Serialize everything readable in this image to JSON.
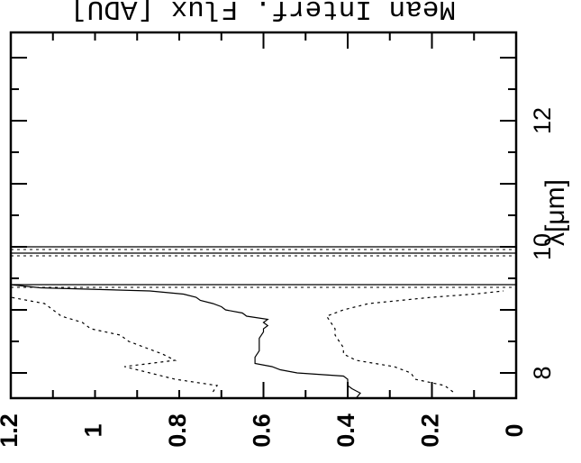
{
  "chart_data": {
    "type": "line",
    "title": "Mean Interf. Flux [ADU]",
    "xlabel": "λ[μm]",
    "ylabel": "",
    "xlim": [
      7.6,
      13.4
    ],
    "ylim": [
      0,
      1.2
    ],
    "x_ticks": [
      8,
      10,
      12
    ],
    "y_ticks": [
      0,
      0.2,
      0.4,
      0.6,
      0.8,
      1,
      1.2
    ],
    "y_tick_labels": [
      "0",
      "0.2",
      "0.4",
      "0.6",
      "0.8",
      "1",
      "1.2"
    ],
    "grid": false,
    "legend": "none",
    "vertical_lines": [
      9.4,
      9.9,
      10.0
    ],
    "series": [
      {
        "style": "solid",
        "x": [
          7.6,
          7.68,
          7.75,
          7.8,
          7.85,
          7.9,
          7.95,
          8.0,
          8.05,
          8.1,
          8.15,
          8.25,
          8.35,
          8.45,
          8.55,
          8.65,
          8.7,
          8.75,
          8.8,
          8.85,
          8.9,
          8.95,
          9.0,
          9.05,
          9.1,
          9.15,
          9.2,
          9.25,
          9.3,
          9.35,
          9.4
        ],
        "y": [
          0.38,
          0.37,
          0.39,
          0.4,
          0.4,
          0.4,
          0.41,
          0.52,
          0.56,
          0.58,
          0.62,
          0.62,
          0.61,
          0.61,
          0.61,
          0.6,
          0.6,
          0.59,
          0.6,
          0.59,
          0.64,
          0.65,
          0.69,
          0.7,
          0.72,
          0.75,
          0.76,
          0.79,
          0.87,
          1.13,
          1.2
        ]
      },
      {
        "style": "dotted",
        "x": [
          7.7,
          7.8,
          7.9,
          8.0,
          8.1,
          8.2,
          8.3,
          8.4,
          8.5,
          8.6,
          8.7,
          8.8,
          8.9,
          9.0,
          9.1,
          9.2,
          9.25,
          9.3
        ],
        "y": [
          0.15,
          0.17,
          0.24,
          0.25,
          0.29,
          0.38,
          0.41,
          0.41,
          0.42,
          0.43,
          0.43,
          0.44,
          0.45,
          0.41,
          0.35,
          0.2,
          0.1,
          0.03
        ]
      },
      {
        "style": "dotted",
        "x": [
          7.7,
          7.8,
          7.9,
          8.0,
          8.1,
          8.2,
          8.3,
          8.4,
          8.5,
          8.6,
          8.7,
          8.8,
          8.9,
          9.0,
          9.1,
          9.2
        ],
        "y": [
          0.72,
          0.71,
          0.81,
          0.87,
          0.93,
          0.81,
          0.84,
          0.88,
          0.92,
          0.94,
          1.01,
          1.03,
          1.08,
          1.1,
          1.12,
          1.2
        ]
      }
    ]
  }
}
